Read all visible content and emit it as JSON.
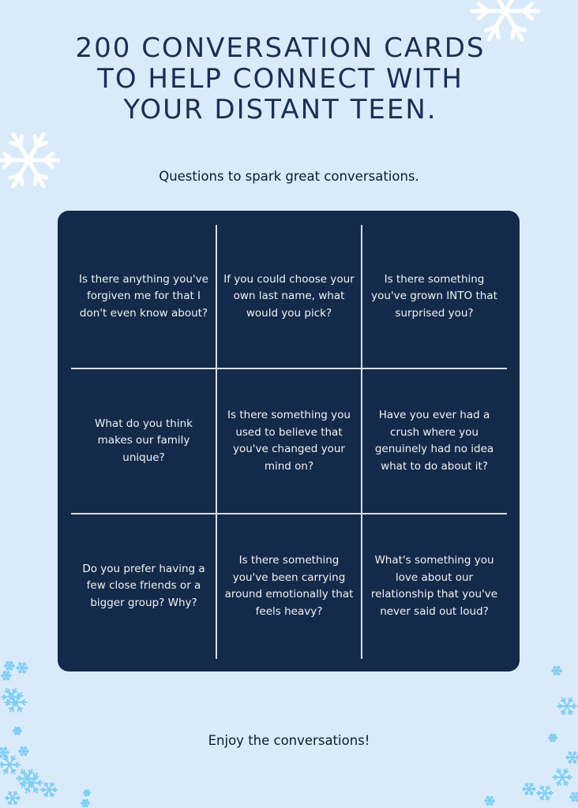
{
  "title_lines": [
    "200 CONVERSATION CARDS",
    "TO HELP CONNECT WITH",
    "YOUR DISTANT TEEN."
  ],
  "subtitle": "Questions to spark great conversations.",
  "questions": [
    "Is there anything you've forgiven me for that I don't even know about?",
    "If you could choose your own last name, what would you pick?",
    "Is there something you've grown INTO that surprised you?",
    "What do you think makes our family unique?",
    "Is there something you used to believe that you've changed your mind on?",
    "Have you ever had a crush where you genuinely had no idea what to do about it?",
    "Do you prefer having a few close friends or a bigger group? Why?",
    "Is there something you've been carrying around emotionally that feels heavy?",
    "What's something you love about our relationship that you've never said out loud?"
  ],
  "footer": "Enjoy the conversations!",
  "colors": {
    "background": "#d9ebfa",
    "card": "#132a4b",
    "title": "#1b2f55",
    "snowflake_white": "#ffffff",
    "snowflake_blue": "#7fcdf5"
  },
  "icons": [
    "snowflake-icon"
  ]
}
